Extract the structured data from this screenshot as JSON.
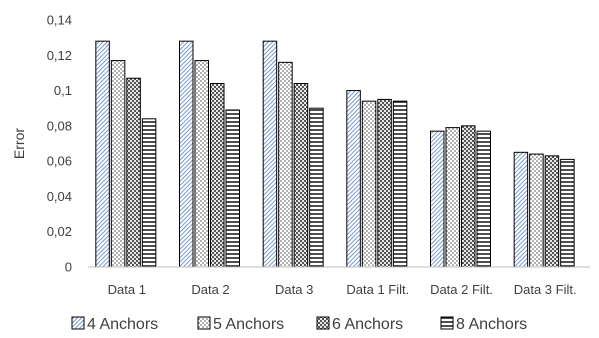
{
  "chart_data": {
    "type": "bar",
    "title": "",
    "xlabel": "",
    "ylabel": "Error",
    "ylim": [
      0,
      0.14
    ],
    "yticks": [
      "0",
      "0,02",
      "0,04",
      "0,06",
      "0,08",
      "0,1",
      "0,12",
      "0,14"
    ],
    "grid": false,
    "legend_position": "bottom",
    "categories": [
      "Data 1",
      "Data 2",
      "Data 3",
      "Data 1 Filt.",
      "Data 2 Filt.",
      "Data 3 Filt."
    ],
    "series": [
      {
        "name": "4 Anchors",
        "pattern": "diagonal-blue",
        "values": [
          0.128,
          0.128,
          0.128,
          0.1,
          0.077,
          0.065
        ]
      },
      {
        "name": "5 Anchors",
        "pattern": "dots",
        "values": [
          0.117,
          0.117,
          0.116,
          0.094,
          0.079,
          0.064
        ]
      },
      {
        "name": "6 Anchors",
        "pattern": "checker",
        "values": [
          0.107,
          0.104,
          0.104,
          0.095,
          0.08,
          0.063
        ]
      },
      {
        "name": "8 Anchors",
        "pattern": "horizontal-lines",
        "values": [
          0.084,
          0.089,
          0.09,
          0.094,
          0.077,
          0.061
        ]
      }
    ]
  }
}
